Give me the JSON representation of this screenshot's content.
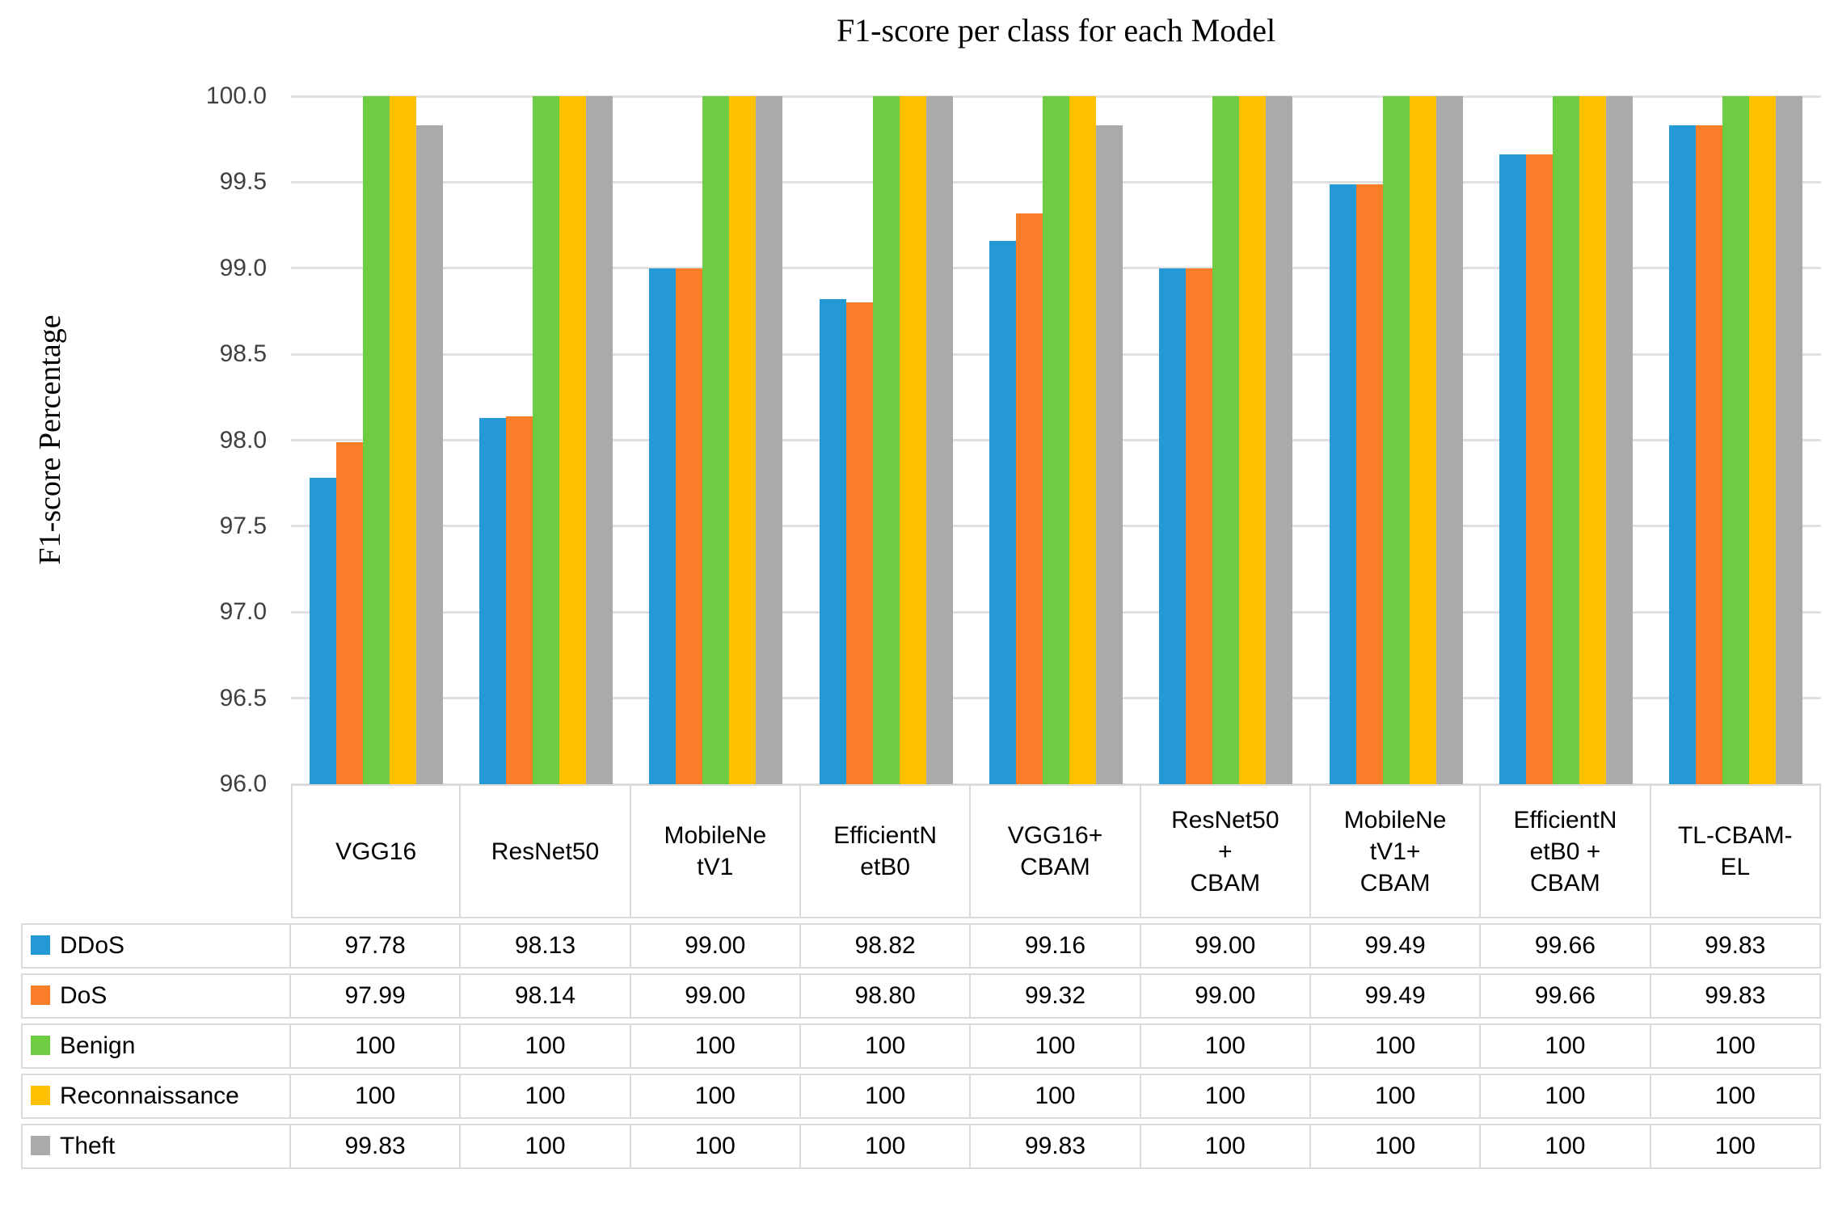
{
  "chart_data": {
    "type": "bar",
    "title": "F1-score per class for each Model",
    "ylabel": "F1-score Percentage",
    "xlabel": "",
    "ylim": [
      96.0,
      100.0
    ],
    "ytick_step": 0.5,
    "ytick_labels": [
      "100.0",
      "99.5",
      "99.0",
      "98.5",
      "98.0",
      "97.5",
      "97.0",
      "96.5",
      "96.0"
    ],
    "grid": true,
    "legend_position": "data-table-row-keys",
    "gridline_color": "#E0E0E0",
    "table_border_color": "#D9D9D9",
    "categories": [
      "VGG16",
      "ResNet50",
      "MobileNetV1",
      "EfficientNetB0",
      "VGG16+CBAM",
      "ResNet50 + CBAM",
      "MobileNetV1+ CBAM",
      "EfficientNetB0 + CBAM",
      "TL-CBAM-EL"
    ],
    "category_display": [
      "VGG16",
      "ResNet50",
      "MobileNe\ntV1",
      "EfficientN\netB0",
      "VGG16+\nCBAM",
      "ResNet50\n+\nCBAM",
      "MobileNe\ntV1+\nCBAM",
      "EfficientN\netB0 +\nCBAM",
      "TL-CBAM-\nEL"
    ],
    "series": [
      {
        "name": "DDoS",
        "color": "#2499D6",
        "values": [
          97.78,
          98.13,
          99.0,
          98.82,
          99.16,
          99.0,
          99.49,
          99.66,
          99.83
        ],
        "display": [
          "97.78",
          "98.13",
          "99.00",
          "98.82",
          "99.16",
          "99.00",
          "99.49",
          "99.66",
          "99.83"
        ]
      },
      {
        "name": "DoS",
        "color": "#FA7D29",
        "values": [
          97.99,
          98.14,
          99.0,
          98.8,
          99.32,
          99.0,
          99.49,
          99.66,
          99.83
        ],
        "display": [
          "97.99",
          "98.14",
          "99.00",
          "98.80",
          "99.32",
          "99.00",
          "99.49",
          "99.66",
          "99.83"
        ]
      },
      {
        "name": "Benign",
        "color": "#6DCC42",
        "values": [
          100,
          100,
          100,
          100,
          100,
          100,
          100,
          100,
          100
        ],
        "display": [
          "100",
          "100",
          "100",
          "100",
          "100",
          "100",
          "100",
          "100",
          "100"
        ]
      },
      {
        "name": "Reconnaissance",
        "color": "#FFC000",
        "values": [
          100,
          100,
          100,
          100,
          100,
          100,
          100,
          100,
          100
        ],
        "display": [
          "100",
          "100",
          "100",
          "100",
          "100",
          "100",
          "100",
          "100",
          "100"
        ]
      },
      {
        "name": "Theft",
        "color": "#AAAAAA",
        "values": [
          99.83,
          100,
          100,
          100,
          99.83,
          100,
          100,
          100,
          100
        ],
        "display": [
          "99.83",
          "100",
          "100",
          "100",
          "99.83",
          "100",
          "100",
          "100",
          "100"
        ]
      }
    ]
  }
}
